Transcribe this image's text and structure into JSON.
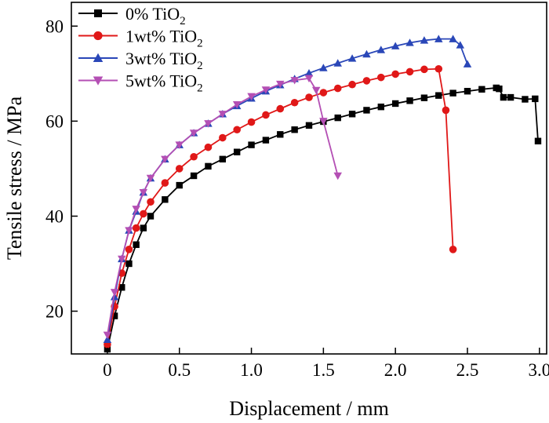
{
  "chart_data": {
    "type": "line",
    "xlabel": "Displacement / mm",
    "ylabel": "Tensile stress / MPa",
    "xlim": [
      -0.25,
      3.05
    ],
    "ylim": [
      11,
      85
    ],
    "xticks": [
      "0",
      "0.5",
      "1.0",
      "1.5",
      "2.0",
      "2.5",
      "3.0"
    ],
    "yticks": [
      "20",
      "40",
      "60",
      "80"
    ],
    "legend_position": "top-left",
    "series": [
      {
        "name": "0% TiO2",
        "legend_main": "0% TiO",
        "legend_sub": "2",
        "color": "#000000",
        "marker": "square",
        "x": [
          0,
          0.05,
          0.1,
          0.15,
          0.2,
          0.25,
          0.3,
          0.4,
          0.5,
          0.6,
          0.7,
          0.8,
          0.9,
          1.0,
          1.1,
          1.2,
          1.3,
          1.4,
          1.5,
          1.6,
          1.7,
          1.8,
          1.9,
          2.0,
          2.1,
          2.2,
          2.3,
          2.4,
          2.5,
          2.6,
          2.7,
          2.72,
          2.75,
          2.8,
          2.9,
          2.97,
          2.99
        ],
        "y": [
          12,
          19,
          25,
          30,
          34,
          37.5,
          40,
          43.5,
          46.5,
          48.5,
          50.5,
          52,
          53.5,
          55,
          56,
          57.2,
          58.2,
          59.1,
          59.9,
          60.7,
          61.5,
          62.3,
          63,
          63.7,
          64.3,
          64.9,
          65.4,
          65.9,
          66.3,
          66.7,
          67,
          66.8,
          65,
          65,
          64.6,
          64.7,
          55.8
        ]
      },
      {
        "name": "1wt% TiO2",
        "legend_main": "1wt% TiO",
        "legend_sub": "2",
        "color": "#e01818",
        "marker": "circle",
        "x": [
          0,
          0.05,
          0.1,
          0.15,
          0.2,
          0.25,
          0.3,
          0.4,
          0.5,
          0.6,
          0.7,
          0.8,
          0.9,
          1.0,
          1.1,
          1.2,
          1.3,
          1.4,
          1.5,
          1.6,
          1.7,
          1.8,
          1.9,
          2.0,
          2.1,
          2.2,
          2.3,
          2.35,
          2.4
        ],
        "y": [
          13,
          21,
          28,
          33,
          37.5,
          40.5,
          43,
          47,
          50,
          52.5,
          54.5,
          56.5,
          58.2,
          59.8,
          61.3,
          62.6,
          63.9,
          65,
          66,
          66.9,
          67.7,
          68.5,
          69.2,
          69.9,
          70.4,
          70.9,
          71,
          62.3,
          33
        ]
      },
      {
        "name": "3wt% TiO2",
        "legend_main": "3wt% TiO",
        "legend_sub": "2",
        "color": "#2a47b8",
        "marker": "triangle-up",
        "x": [
          0,
          0.05,
          0.1,
          0.15,
          0.2,
          0.25,
          0.3,
          0.4,
          0.5,
          0.6,
          0.7,
          0.8,
          0.9,
          1.0,
          1.1,
          1.2,
          1.3,
          1.4,
          1.5,
          1.6,
          1.7,
          1.8,
          1.9,
          2.0,
          2.1,
          2.2,
          2.3,
          2.4,
          2.45,
          2.5
        ],
        "y": [
          14,
          23,
          31,
          37,
          41,
          45,
          48,
          52,
          55,
          57.5,
          59.5,
          61.5,
          63.2,
          64.8,
          66.3,
          67.6,
          68.9,
          70.1,
          71.2,
          72.2,
          73.2,
          74.1,
          75,
          75.8,
          76.5,
          77,
          77.3,
          77.3,
          76,
          72
        ]
      },
      {
        "name": "5wt% TiO2",
        "legend_main": "5wt% TiO",
        "legend_sub": "2",
        "color": "#b44fb4",
        "marker": "triangle-down",
        "x": [
          0,
          0.05,
          0.1,
          0.15,
          0.2,
          0.25,
          0.3,
          0.4,
          0.5,
          0.6,
          0.7,
          0.8,
          0.9,
          1.0,
          1.1,
          1.2,
          1.3,
          1.4,
          1.45,
          1.5,
          1.6
        ],
        "y": [
          15,
          24,
          31,
          37,
          41.5,
          45,
          48,
          52,
          55,
          57.5,
          59.5,
          61.5,
          63.5,
          65.2,
          66.6,
          67.8,
          68.6,
          69,
          66.5,
          60,
          48.5
        ]
      }
    ]
  }
}
